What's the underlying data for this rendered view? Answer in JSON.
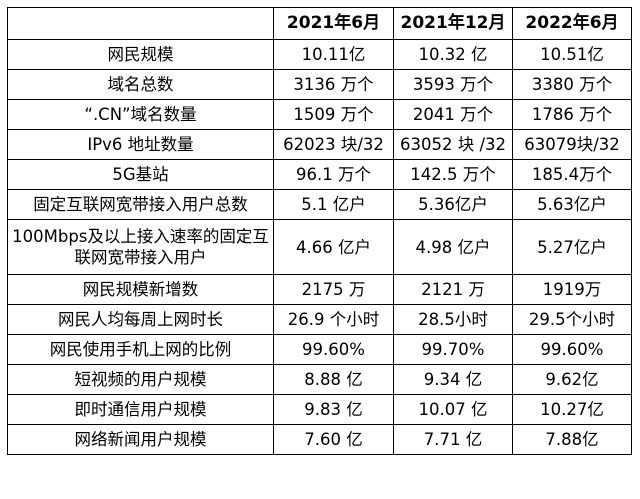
{
  "table": {
    "header": [
      "",
      "2021年6月",
      "2021年12月",
      "2022年6月"
    ],
    "rows": [
      {
        "label": "网民规模",
        "values": [
          "10.11亿",
          "10.32 亿",
          "10.51亿"
        ]
      },
      {
        "label": "域名总数",
        "values": [
          "3136 万个",
          "3593 万个",
          "3380 万个"
        ]
      },
      {
        "label": "“.CN”域名数量",
        "values": [
          "1509 万个",
          "2041 万个",
          "1786 万个"
        ]
      },
      {
        "label": "IPv6 地址数量",
        "values": [
          "62023 块/32",
          "63052 块 /32",
          "63079块/32"
        ]
      },
      {
        "label": "5G基站",
        "values": [
          "96.1 万个",
          "142.5 万个",
          "185.4万个"
        ]
      },
      {
        "label": "固定互联网宽带接入用户总数",
        "values": [
          "5.1 亿户",
          "5.36亿户",
          "5.63亿户"
        ]
      },
      {
        "label": "100Mbps及以上接入速率的固定互联网宽带接入用户",
        "values": [
          "4.66 亿户",
          "4.98 亿户",
          "5.27亿户"
        ]
      },
      {
        "label": "网民规模新增数",
        "values": [
          "2175 万",
          "2121 万",
          "1919万"
        ]
      },
      {
        "label": "网民人均每周上网时长",
        "values": [
          "26.9 个小时",
          "28.5小时",
          "29.5个小时"
        ]
      },
      {
        "label": "网民使用手机上网的比例",
        "values": [
          "99.60%",
          "99.70%",
          "99.60%"
        ]
      },
      {
        "label": "短视频的用户规模",
        "values": [
          "8.88 亿",
          "9.34 亿",
          "9.62亿"
        ]
      },
      {
        "label": "即时通信用户规模",
        "values": [
          "9.83 亿",
          "10.07 亿",
          "10.27亿"
        ]
      },
      {
        "label": "网络新闻用户规模",
        "values": [
          "7.60 亿",
          "7.71 亿",
          "7.88亿"
        ]
      }
    ]
  }
}
